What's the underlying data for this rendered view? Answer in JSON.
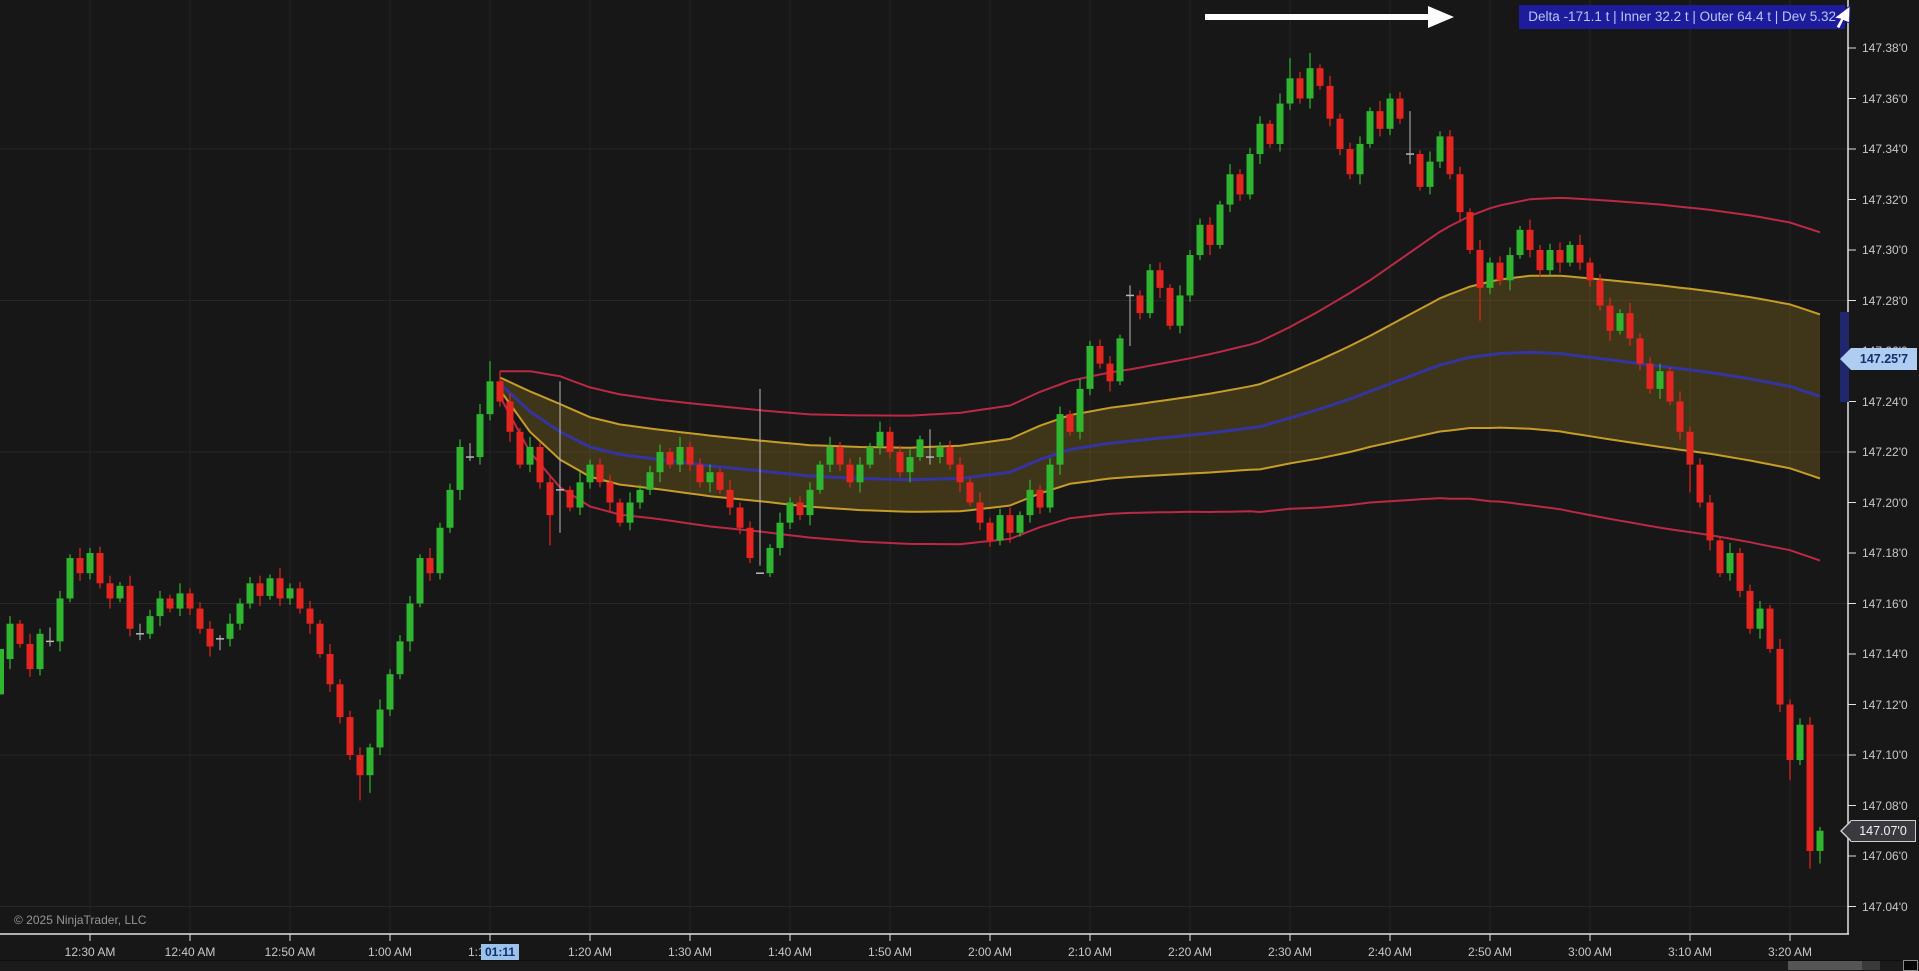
{
  "window": {
    "copyright": "© 2025 NinjaTrader, LLC"
  },
  "annotation": {
    "label": "Delta -171.1 t | Inner 32.2 t | Outer 64.4 t | Dev 5.32",
    "badge_bg": "#1c1c9c",
    "badge_text_color": "#b7c6f7",
    "arrow_color": "#ffffff"
  },
  "price_axis": {
    "text_color": "#c8c8c8",
    "labels": [
      "147.38'0",
      "147.36'0",
      "147.34'0",
      "147.32'0",
      "147.30'0",
      "147.28'0",
      "147.26'0",
      "147.24'0",
      "147.22'0",
      "147.20'0",
      "147.18'0",
      "147.16'0",
      "147.14'0",
      "147.12'0",
      "147.10'0",
      "147.08'0",
      "147.06'0",
      "147.04'0"
    ],
    "values": [
      147.38,
      147.36,
      147.34,
      147.32,
      147.3,
      147.28,
      147.26,
      147.24,
      147.22,
      147.2,
      147.18,
      147.16,
      147.14,
      147.12,
      147.1,
      147.08,
      147.06,
      147.04
    ],
    "indicator_marker": {
      "label": "147.25'7",
      "value": 147.257,
      "bg": "#aecdf1",
      "text_color": "#14306e"
    },
    "last_price_marker": {
      "label": "147.07'0",
      "value": 147.07,
      "bg": "#3a3a3e",
      "text_color": "#f2f2f2",
      "border": "#cfcfcf"
    }
  },
  "time_axis": {
    "text_color": "#c8c8c8",
    "labels": [
      "12:30 AM",
      "12:40 AM",
      "12:50 AM",
      "1:00 AM",
      "1:10 AM",
      "1:20 AM",
      "1:30 AM",
      "1:40 AM",
      "1:50 AM",
      "2:00 AM",
      "2:10 AM",
      "2:20 AM",
      "2:30 AM",
      "2:40 AM",
      "2:50 AM",
      "3:00 AM",
      "3:10 AM",
      "3:20 AM"
    ],
    "highlight": {
      "label": "01:11",
      "minute_index": 49,
      "bg": "#9cc2ea",
      "text_color": "#0e2f6e"
    }
  },
  "chart_data": {
    "type": "candlestick",
    "interval": "1 min",
    "start_time": "12:22 AM",
    "end_time": "3:23 AM",
    "ylim": [
      147.03,
      147.395
    ],
    "grid_h_prices": [
      147.34,
      147.28,
      147.22,
      147.16,
      147.1,
      147.04
    ],
    "colors": {
      "up": "#2fb52f",
      "down": "#e5251f",
      "doji": "#b8b8b8",
      "grid": "#262626",
      "axis": "#e2e2e2",
      "bg": "#171717"
    },
    "first_open": 147.138,
    "left_clipped_candle": {
      "open": 147.124,
      "close": 147.142
    },
    "closes": [
      147.152,
      147.144,
      147.134,
      147.148,
      147.145,
      147.162,
      147.178,
      147.172,
      147.18,
      147.168,
      147.162,
      147.167,
      147.15,
      147.148,
      147.155,
      147.162,
      147.158,
      147.164,
      147.158,
      147.15,
      147.143,
      147.146,
      147.152,
      147.16,
      147.168,
      147.163,
      147.17,
      147.162,
      147.166,
      147.158,
      147.152,
      147.14,
      147.128,
      147.115,
      147.1,
      147.092,
      147.103,
      147.118,
      147.132,
      147.145,
      147.16,
      147.178,
      147.172,
      147.19,
      147.205,
      147.222,
      147.218,
      147.235,
      147.248,
      147.24,
      147.228,
      147.215,
      147.222,
      147.208,
      147.195,
      147.205,
      147.198,
      147.208,
      147.215,
      147.208,
      147.2,
      147.192,
      147.2,
      147.205,
      147.212,
      147.22,
      147.215,
      147.222,
      147.215,
      147.208,
      147.212,
      147.205,
      147.198,
      147.19,
      147.178,
      147.172,
      147.182,
      147.192,
      147.2,
      147.195,
      147.205,
      147.215,
      147.222,
      147.215,
      147.208,
      147.215,
      147.222,
      147.228,
      147.22,
      147.212,
      147.218,
      147.225,
      147.218,
      147.222,
      147.215,
      147.208,
      147.2,
      147.192,
      147.185,
      147.195,
      147.188,
      147.195,
      147.205,
      147.198,
      147.215,
      147.235,
      147.228,
      147.245,
      147.262,
      147.255,
      147.248,
      147.265,
      147.282,
      147.275,
      147.292,
      147.285,
      147.27,
      147.282,
      147.298,
      147.31,
      147.302,
      147.318,
      147.33,
      147.322,
      147.338,
      147.35,
      147.342,
      147.358,
      147.368,
      147.36,
      147.372,
      147.365,
      147.352,
      147.34,
      147.33,
      147.342,
      147.355,
      147.348,
      147.36,
      147.352,
      147.338,
      147.325,
      147.335,
      147.345,
      147.33,
      147.315,
      147.3,
      147.285,
      147.295,
      147.288,
      147.298,
      147.308,
      147.3,
      147.292,
      147.3,
      147.295,
      147.302,
      147.295,
      147.288,
      147.278,
      147.268,
      147.275,
      147.265,
      147.255,
      147.245,
      147.252,
      147.24,
      147.228,
      147.215,
      147.2,
      147.185,
      147.172,
      147.18,
      147.165,
      147.15,
      147.158,
      147.142,
      147.12,
      147.098,
      147.112,
      147.062,
      147.07
    ],
    "doji_indices": [
      4,
      13,
      21,
      46,
      55,
      75,
      92,
      112,
      140
    ],
    "wick_overrides": {
      "35": {
        "l": 147.082
      },
      "36": {
        "l": 147.085
      },
      "48": {
        "h": 147.256
      },
      "49": {
        "h": 147.252
      },
      "54": {
        "l": 147.183
      },
      "55": {
        "h": 147.248,
        "l": 147.188
      },
      "75": {
        "h": 147.245,
        "l": 147.175
      },
      "128": {
        "h": 147.376
      },
      "130": {
        "h": 147.378
      },
      "147": {
        "l": 147.272
      },
      "168": {
        "l": 147.204
      },
      "178": {
        "l": 147.09
      },
      "180": {
        "l": 147.055
      },
      "181": {
        "l": 147.057
      }
    },
    "indicator": {
      "name": "anchored vwap bands",
      "anchor_time": "1:11 AM",
      "anchor_index": 49,
      "delta_ticks": -171.1,
      "inner_ticks": 32.2,
      "outer_ticks": 64.4,
      "dev": 5.32,
      "colors": {
        "mid": "#34349e",
        "inner": "#c79d2a",
        "outer": "#bb2946",
        "fill": "#9a7d22",
        "fill_opacity": 0.3
      },
      "mid_keypoints": {
        "idx": [
          49,
          52,
          55,
          58,
          61,
          65,
          70,
          75,
          80,
          85,
          90,
          95,
          100,
          103,
          106,
          110,
          115,
          120,
          125,
          128,
          131,
          134,
          137,
          140,
          143,
          146,
          149,
          152,
          155,
          158,
          162,
          166,
          170,
          174,
          178,
          181
        ],
        "val": [
          147.247,
          147.236,
          147.228,
          147.222,
          147.219,
          147.217,
          147.2145,
          147.2125,
          147.2105,
          147.2095,
          147.209,
          147.2095,
          147.212,
          147.217,
          147.221,
          147.2235,
          147.2255,
          147.2275,
          147.23,
          147.2335,
          147.237,
          147.241,
          147.2455,
          147.25,
          147.2545,
          147.2575,
          147.259,
          147.2595,
          147.259,
          147.2575,
          147.2555,
          147.2535,
          147.2515,
          147.249,
          147.246,
          147.242
        ]
      },
      "inner_halfwidth_keypoints": {
        "idx": [
          49,
          52,
          55,
          58,
          61,
          65,
          70,
          75,
          80,
          85,
          90,
          95,
          100,
          106,
          112,
          118,
          124,
          128,
          132,
          136,
          140,
          144,
          148,
          152,
          156,
          160,
          165,
          170,
          175,
          181
        ],
        "val": [
          0.0025,
          0.008,
          0.011,
          0.0118,
          0.0119,
          0.0118,
          0.012,
          0.012,
          0.0122,
          0.0125,
          0.0127,
          0.013,
          0.0132,
          0.0136,
          0.0142,
          0.0152,
          0.0165,
          0.018,
          0.02,
          0.022,
          0.0245,
          0.027,
          0.029,
          0.0303,
          0.031,
          0.0315,
          0.032,
          0.0322,
          0.0324,
          0.0325
        ]
      }
    }
  }
}
